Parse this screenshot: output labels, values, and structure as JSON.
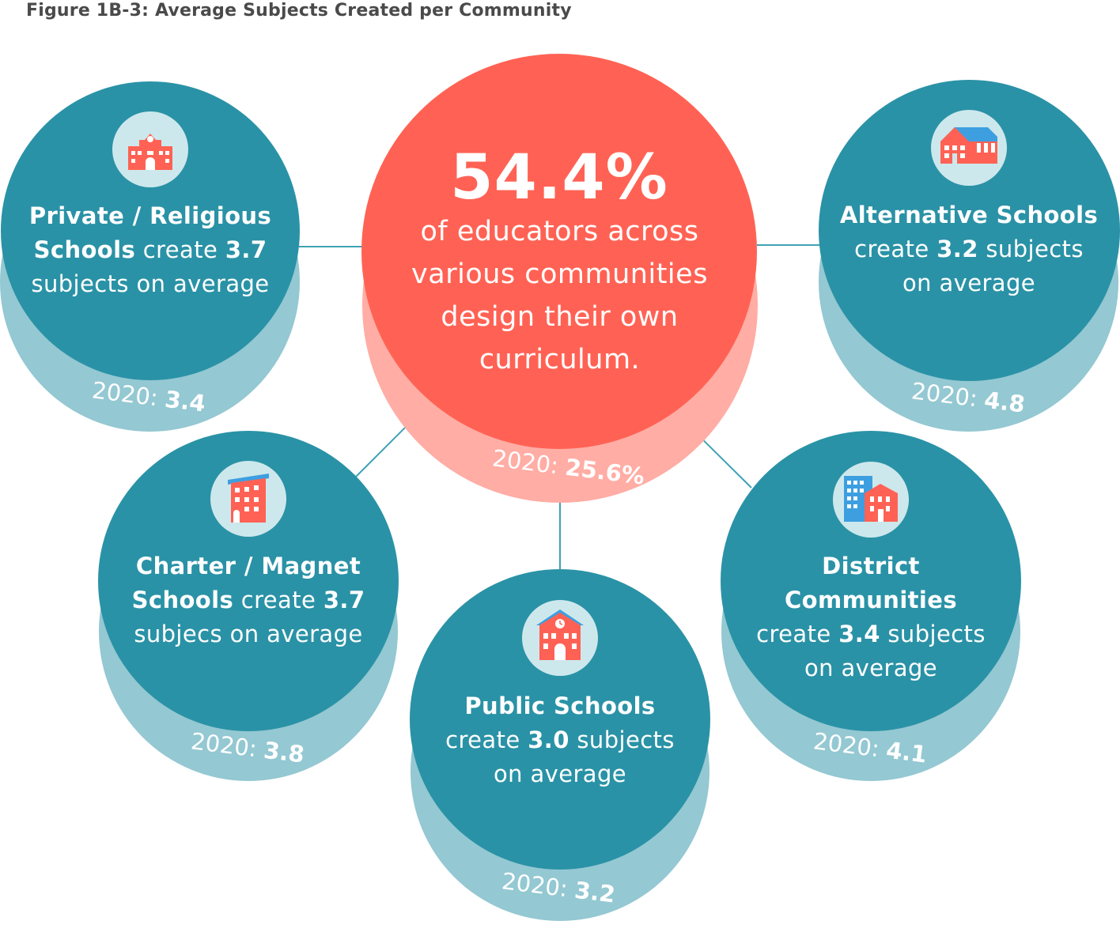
{
  "title": "Figure 1B-3: Average Subjects Created per Community",
  "colors": {
    "teal": "#2a92a6",
    "teal_shadow": "#94c8d2",
    "coral": "#ff6254",
    "coral_shadow": "#ffada5",
    "icon_bg": "#cde8ec",
    "connector": "#3fa2b4"
  },
  "center": {
    "stat": "54.4%",
    "lines": [
      "of educators across",
      "various communities",
      "design their own",
      "curriculum."
    ],
    "prev_label": "2020:",
    "prev_value": "25.6%"
  },
  "communities": [
    {
      "id": "private",
      "icon": "private-school-icon",
      "line1": "Private / Religious",
      "line2_bold": "Schools",
      "line2_a": " create ",
      "line2_val": "3.7",
      "line3": "subjects on average",
      "prev_label": "2020:",
      "prev_value": "3.4"
    },
    {
      "id": "alternative",
      "icon": "alternative-school-icon",
      "line1": "Alternative Schools",
      "line2_a": "create ",
      "line2_val": "3.2",
      "line2_b": " subjects",
      "line3": "on average",
      "prev_label": "2020:",
      "prev_value": "4.8"
    },
    {
      "id": "charter",
      "icon": "charter-school-icon",
      "line1": "Charter / Magnet",
      "line2_bold": "Schools",
      "line2_a": " create ",
      "line2_val": "3.7",
      "line3": "subjecs on average",
      "prev_label": "2020:",
      "prev_value": "3.8"
    },
    {
      "id": "public",
      "icon": "public-school-icon",
      "line1": "Public Schools",
      "line2_a": "create ",
      "line2_val": "3.0",
      "line2_b": " subjects",
      "line3": "on average",
      "prev_label": "2020:",
      "prev_value": "3.2"
    },
    {
      "id": "district",
      "icon": "district-buildings-icon",
      "line1": "District",
      "line1b": "Communities",
      "line2_a": "create ",
      "line2_val": "3.4",
      "line2_b": " subjects",
      "line3": "on average",
      "prev_label": "2020:",
      "prev_value": "4.1"
    }
  ],
  "chart_data": {
    "type": "table",
    "title": "Figure 1B-3: Average Subjects Created per Community",
    "headline": {
      "value": 54.4,
      "unit": "%",
      "previous_2020": 25.6
    },
    "categories": [
      "Private / Religious Schools",
      "Alternative Schools",
      "Charter / Magnet Schools",
      "Public Schools",
      "District Communities"
    ],
    "series": [
      {
        "values": [
          3.7,
          3.2,
          3.7,
          3.0,
          3.4
        ]
      },
      {
        "name": "2020",
        "values": [
          3.4,
          4.8,
          3.8,
          3.2,
          4.1
        ]
      }
    ]
  }
}
